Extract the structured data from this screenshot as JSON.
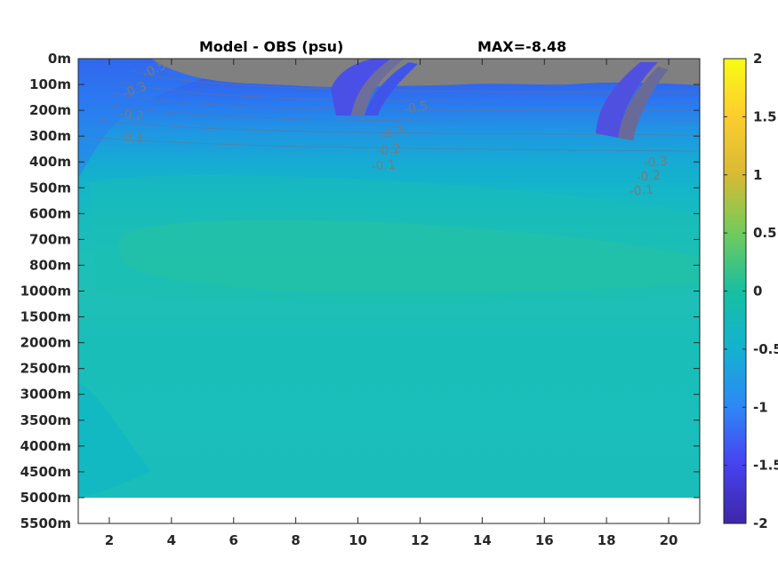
{
  "chart_data": {
    "type": "heatmap",
    "title": "Model - OBS (psu)",
    "annotation": "MAX=-8.48",
    "xlabel": "",
    "ylabel": "",
    "x_ticks": [
      "2",
      "4",
      "6",
      "8",
      "10",
      "12",
      "14",
      "16",
      "18",
      "20"
    ],
    "x_tick_values": [
      2,
      4,
      6,
      8,
      10,
      12,
      14,
      16,
      18,
      20
    ],
    "xlim": [
      1,
      21
    ],
    "y_ticks": [
      "0m",
      "100m",
      "200m",
      "300m",
      "400m",
      "500m",
      "600m",
      "700m",
      "800m",
      "1000m",
      "1500m",
      "2000m",
      "2500m",
      "3000m",
      "3500m",
      "4000m",
      "4500m",
      "5000m",
      "5500m"
    ],
    "colorbar": {
      "ticks": [
        "2",
        "1.5",
        "1",
        "0.5",
        "0",
        "-0.5",
        "-1",
        "-1.5",
        "-2"
      ],
      "tick_values": [
        2,
        1.5,
        1,
        0.5,
        0,
        -0.5,
        -1,
        -1.5,
        -2
      ],
      "range": [
        -2,
        2
      ],
      "colormap": "parula",
      "colors": [
        "#3e26a8",
        "#4743f0",
        "#2e87f7",
        "#17b1d5",
        "#22bf9a",
        "#75cb5a",
        "#d8ba34",
        "#fcce2e",
        "#f9fb14"
      ]
    },
    "contour_labels": [
      "-0.5",
      "-0.3",
      "-0.2",
      "-0.1",
      "-0.5",
      "-0.3",
      "-0.2",
      "-0.1",
      "-0.3",
      "-0.2",
      "-0.1"
    ],
    "masked_color": "#808080",
    "data_bottom_depth": "5000m"
  }
}
